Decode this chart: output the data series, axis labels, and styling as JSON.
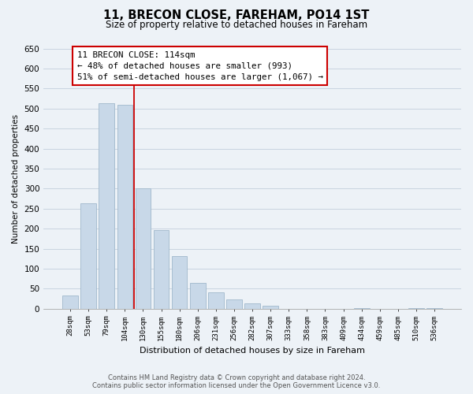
{
  "title": "11, BRECON CLOSE, FAREHAM, PO14 1ST",
  "subtitle": "Size of property relative to detached houses in Fareham",
  "xlabel": "Distribution of detached houses by size in Fareham",
  "ylabel": "Number of detached properties",
  "categories": [
    "28sqm",
    "53sqm",
    "79sqm",
    "104sqm",
    "130sqm",
    "155sqm",
    "180sqm",
    "206sqm",
    "231sqm",
    "256sqm",
    "282sqm",
    "307sqm",
    "333sqm",
    "358sqm",
    "383sqm",
    "409sqm",
    "434sqm",
    "459sqm",
    "485sqm",
    "510sqm",
    "536sqm"
  ],
  "values": [
    33,
    263,
    513,
    510,
    301,
    197,
    132,
    65,
    40,
    23,
    14,
    8,
    0,
    0,
    0,
    0,
    2,
    0,
    0,
    2,
    2
  ],
  "bar_color": "#c8d8e8",
  "bar_edge_color": "#a0b8cc",
  "vline_x": 3.5,
  "vline_color": "#cc0000",
  "ylim": [
    0,
    650
  ],
  "yticks": [
    0,
    50,
    100,
    150,
    200,
    250,
    300,
    350,
    400,
    450,
    500,
    550,
    600,
    650
  ],
  "annotation_title": "11 BRECON CLOSE: 114sqm",
  "annotation_line1": "← 48% of detached houses are smaller (993)",
  "annotation_line2": "51% of semi-detached houses are larger (1,067) →",
  "annotation_box_color": "#ffffff",
  "annotation_box_edge": "#cc0000",
  "footer_line1": "Contains HM Land Registry data © Crown copyright and database right 2024.",
  "footer_line2": "Contains public sector information licensed under the Open Government Licence v3.0.",
  "background_color": "#edf2f7",
  "plot_bg_color": "#edf2f7",
  "grid_color": "#c8d4e0"
}
